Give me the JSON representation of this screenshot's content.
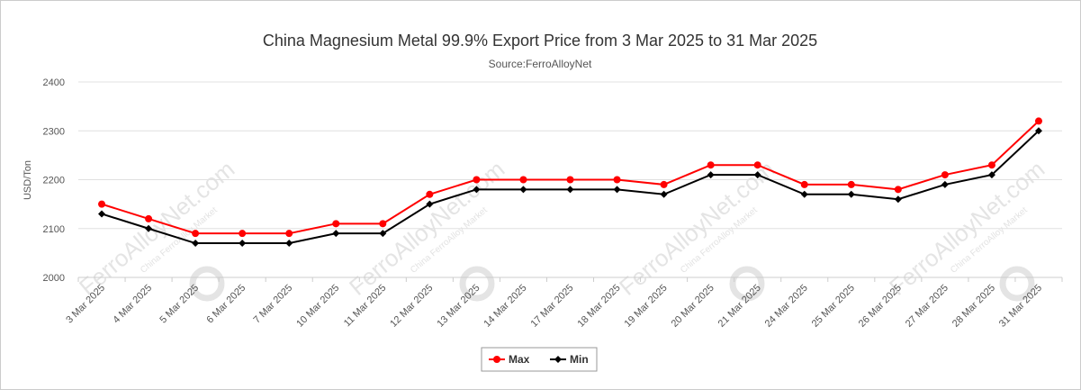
{
  "chart_data": {
    "type": "line",
    "title": "China Magnesium Metal 99.9% Export Price from 3 Mar 2025 to 31 Mar 2025",
    "subtitle": "Source:FerroAlloyNet",
    "ylabel": "USD/Ton",
    "ylim": [
      2000,
      2400
    ],
    "yticks": [
      2000,
      2100,
      2200,
      2300,
      2400
    ],
    "categories": [
      "3 Mar 2025",
      "4 Mar 2025",
      "5 Mar 2025",
      "6 Mar 2025",
      "7 Mar 2025",
      "10 Mar 2025",
      "11 Mar 2025",
      "12 Mar 2025",
      "13 Mar 2025",
      "14 Mar 2025",
      "17 Mar 2025",
      "18 Mar 2025",
      "19 Mar 2025",
      "20 Mar 2025",
      "21 Mar 2025",
      "24 Mar 2025",
      "25 Mar 2025",
      "26 Mar 2025",
      "27 Mar 2025",
      "28 Mar 2025",
      "31 Mar 2025"
    ],
    "series": [
      {
        "name": "Max",
        "color": "#ff0000",
        "marker": "circle",
        "values": [
          2150,
          2120,
          2090,
          2090,
          2090,
          2110,
          2110,
          2170,
          2200,
          2200,
          2200,
          2200,
          2190,
          2230,
          2230,
          2190,
          2190,
          2180,
          2210,
          2230,
          2320
        ]
      },
      {
        "name": "Min",
        "color": "#000000",
        "marker": "diamond",
        "values": [
          2130,
          2100,
          2070,
          2070,
          2070,
          2090,
          2090,
          2150,
          2180,
          2180,
          2180,
          2180,
          2170,
          2210,
          2210,
          2170,
          2170,
          2160,
          2190,
          2210,
          2300
        ]
      }
    ],
    "grid": true,
    "legend": "bottom-center"
  },
  "watermark": {
    "text": "FerroAlloyNet.com",
    "subtext": "China FerroAlloy Market"
  }
}
